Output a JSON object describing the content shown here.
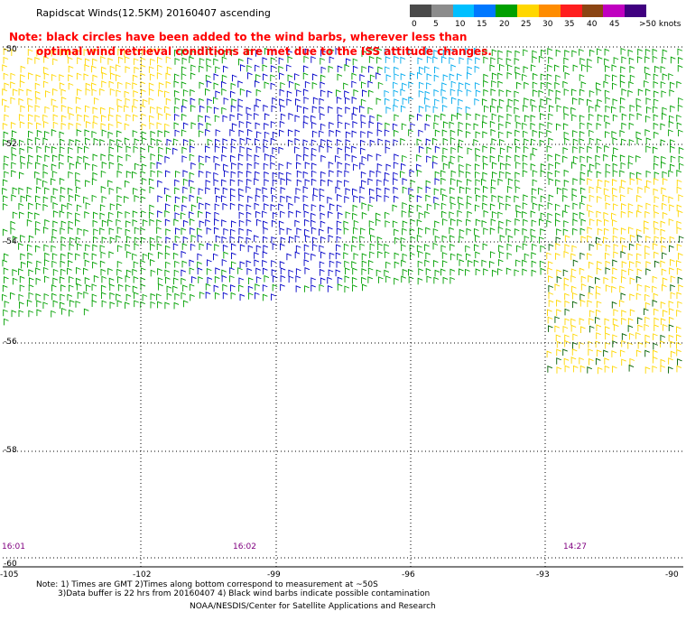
{
  "header": {
    "title": "Rapidscat Winds(12.5KM) 20160407 ascending",
    "note_line1": "Note: black circles have been added to the wind barbs, wherever less than",
    "note_line2": "optimal wind retrieval conditions are met due to the ISS attitude changes."
  },
  "legend": {
    "labels": [
      "0",
      "5",
      "10",
      "15",
      "20",
      "25",
      "30",
      "35",
      "40",
      "45",
      ">50 knots"
    ],
    "colors": [
      "#4a4a4a",
      "#8c8c8c",
      "#00bfff",
      "#0078ff",
      "#00a000",
      "#ffd700",
      "#ff8c00",
      "#ff1e1e",
      "#8b4513",
      "#c000c0",
      "#400080"
    ]
  },
  "axes": {
    "lon_labels": [
      "-105",
      "-102",
      "-99",
      "-96",
      "-93",
      "-90"
    ],
    "lat_labels": [
      "-50",
      "-52",
      "-54",
      "-56",
      "-58",
      "-60"
    ]
  },
  "swath_times": [
    "16:01",
    "16:02",
    "14:27"
  ],
  "footer": {
    "line1": "Note: 1) Times are GMT 2)Times along bottom correspond to measurement at ~50S",
    "line2": "3)Data buffer is 22 hrs from 20160407 4) Black wind barbs indicate possible contamination",
    "line3": "NOAA/NESDIS/Center for Satellite Applications and Research"
  }
}
